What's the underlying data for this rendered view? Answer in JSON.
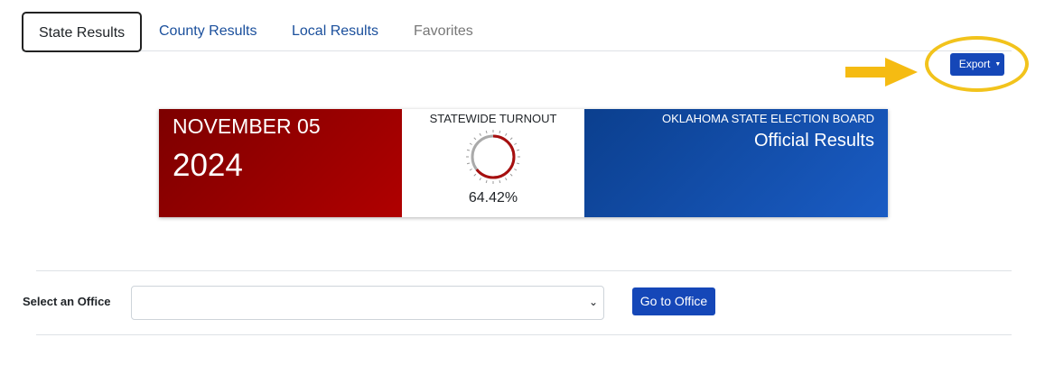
{
  "tabs": [
    {
      "label": "State Results",
      "active": true
    },
    {
      "label": "County Results"
    },
    {
      "label": "Local Results"
    },
    {
      "label": "Favorites"
    }
  ],
  "export": {
    "label": "Export",
    "icon": "caret-down-icon"
  },
  "annotation": {
    "color": "#f2c31c"
  },
  "banner": {
    "month_day": "NOVEMBER 05",
    "year": "2024",
    "turnout_label": "STATEWIDE TURNOUT",
    "turnout_value": "64.42%",
    "turnout_fraction": 0.6442,
    "org": "OKLAHOMA STATE ELECTION BOARD",
    "results_type": "Official Results",
    "colors": {
      "red": "#9e0000",
      "blue": "#1450b0"
    }
  },
  "office": {
    "label": "Select an Office",
    "value": "",
    "button": "Go to Office"
  }
}
